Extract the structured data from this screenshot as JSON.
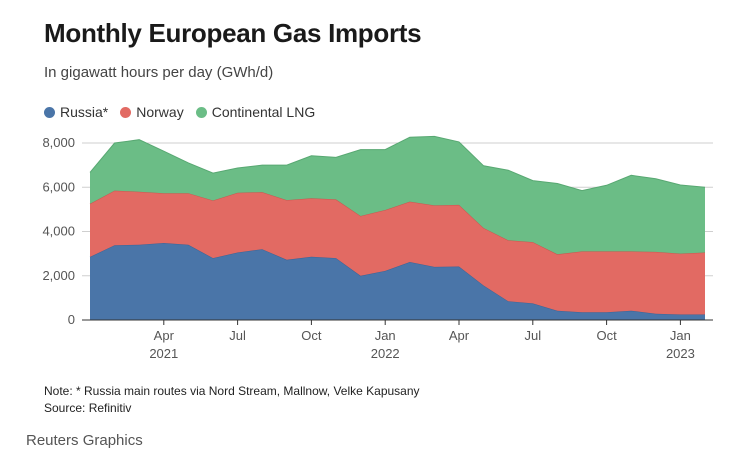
{
  "title": "Monthly European Gas Imports",
  "subtitle": "In gigawatt hours per day (GWh/d)",
  "notes": {
    "note": "Note: * Russia main routes via Nord Stream, Mallnow, Velke Kapusany",
    "source": "Source: Refinitiv"
  },
  "footer": "Reuters Graphics",
  "colors": {
    "russia": "#4a75a8",
    "norway": "#e26a63",
    "lng": "#6bbd86",
    "grid": "#cfcfcf"
  },
  "chart_data": {
    "type": "area",
    "stacked": true,
    "ylim": [
      0,
      8000
    ],
    "yticks": [
      0,
      2000,
      4000,
      6000,
      8000
    ],
    "ytick_labels": [
      "0",
      "2,000",
      "4,000",
      "6,000",
      "8,000"
    ],
    "x_months": [
      "Jan 2021",
      "Feb 2021",
      "Mar 2021",
      "Apr 2021",
      "May 2021",
      "Jun 2021",
      "Jul 2021",
      "Aug 2021",
      "Sep 2021",
      "Oct 2021",
      "Nov 2021",
      "Dec 2021",
      "Jan 2022",
      "Feb 2022",
      "Mar 2022",
      "Apr 2022",
      "May 2022",
      "Jun 2022",
      "Jul 2022",
      "Aug 2022",
      "Sep 2022",
      "Oct 2022",
      "Nov 2022",
      "Dec 2022",
      "Jan 2023",
      "Feb 2023"
    ],
    "x_ticks": [
      {
        "index": 3,
        "label": "Apr",
        "year": "2021"
      },
      {
        "index": 6,
        "label": "Jul",
        "year": ""
      },
      {
        "index": 9,
        "label": "Oct",
        "year": ""
      },
      {
        "index": 12,
        "label": "Jan",
        "year": "2022"
      },
      {
        "index": 15,
        "label": "Apr",
        "year": ""
      },
      {
        "index": 18,
        "label": "Jul",
        "year": ""
      },
      {
        "index": 21,
        "label": "Oct",
        "year": ""
      },
      {
        "index": 24,
        "label": "Jan",
        "year": "2023"
      }
    ],
    "series": [
      {
        "name": "Russia*",
        "key": "russia",
        "values": [
          2850,
          3380,
          3400,
          3480,
          3400,
          2800,
          3050,
          3200,
          2720,
          2860,
          2800,
          2000,
          2220,
          2620,
          2400,
          2420,
          1560,
          850,
          750,
          420,
          350,
          350,
          420,
          280,
          250,
          250
        ]
      },
      {
        "name": "Norway",
        "key": "norway",
        "values": [
          2400,
          2470,
          2400,
          2250,
          2330,
          2600,
          2700,
          2580,
          2700,
          2640,
          2650,
          2700,
          2750,
          2730,
          2780,
          2780,
          2600,
          2750,
          2770,
          2550,
          2750,
          2750,
          2680,
          2800,
          2750,
          2800
        ]
      },
      {
        "name": "Continental LNG",
        "key": "lng",
        "values": [
          1420,
          2150,
          2350,
          1900,
          1370,
          1240,
          1120,
          1220,
          1580,
          1920,
          1900,
          3000,
          2730,
          2910,
          3120,
          2850,
          2810,
          3170,
          2780,
          3200,
          2750,
          2990,
          3440,
          3300,
          3100,
          2950
        ]
      }
    ],
    "legend": [
      "Russia*",
      "Norway",
      "Continental LNG"
    ]
  }
}
